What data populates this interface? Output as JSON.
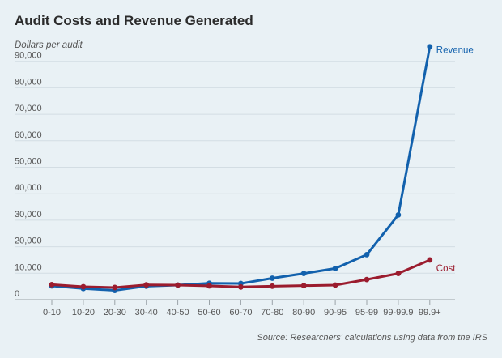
{
  "chart_data": {
    "type": "line",
    "title": "Audit Costs and Revenue Generated",
    "ylabel": "Dollars per audit",
    "xlabel": "",
    "categories": [
      "0-10",
      "10-20",
      "20-30",
      "30-40",
      "40-50",
      "50-60",
      "60-70",
      "70-80",
      "80-90",
      "90-95",
      "95-99",
      "99-99.9",
      "99.9+"
    ],
    "ylim": [
      0,
      95000
    ],
    "yticks": [
      0,
      10000,
      20000,
      30000,
      40000,
      50000,
      60000,
      70000,
      80000,
      90000
    ],
    "ytick_labels": [
      "0",
      "10,000",
      "20,000",
      "30,000",
      "40,000",
      "50,000",
      "60,000",
      "70,000",
      "80,000",
      "90,000"
    ],
    "series": [
      {
        "name": "Revenue",
        "color": "#1261ad",
        "values": [
          5200,
          4200,
          3500,
          5100,
          5500,
          6200,
          6100,
          8100,
          9900,
          11800,
          17000,
          32000,
          95500
        ]
      },
      {
        "name": "Cost",
        "color": "#9b1c2e",
        "values": [
          5700,
          4900,
          4600,
          5600,
          5500,
          5200,
          4800,
          5100,
          5300,
          5500,
          7600,
          9900,
          15000
        ]
      }
    ],
    "grid": true,
    "legend": "inline-end-labels",
    "source": "Source: Researchers' calculations using data from the IRS"
  }
}
